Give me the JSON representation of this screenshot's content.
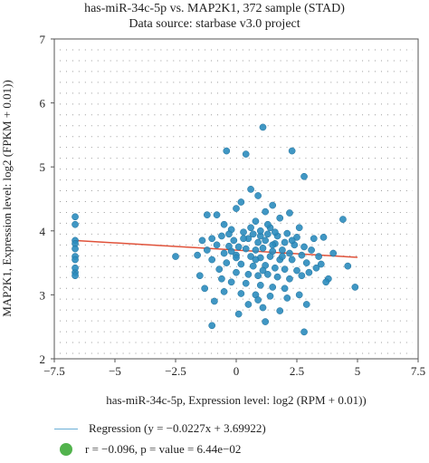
{
  "chart_data": {
    "type": "scatter",
    "title": "has-miR-34c-5p vs. MAP2K1, 372 sample (STAD)",
    "subtitle": "Data source: starbase v3.0 project",
    "xlabel": "has-miR-34c-5p, Expression level: log2 (RPM + 0.01))",
    "ylabel": "MAP2K1, Expression level: log2 (FPKM + 0.01))",
    "xlim": [
      -7.5,
      7.5
    ],
    "ylim": [
      2,
      7
    ],
    "xticks": [
      "−7.5",
      "−5",
      "−2.5",
      "0",
      "2.5",
      "5",
      "7.5"
    ],
    "yticks": [
      "2",
      "3",
      "4",
      "5",
      "6",
      "7"
    ],
    "grid": "dotted",
    "point_color": "#2b8cbe",
    "regression": {
      "slope": -0.0227,
      "intercept": 3.69922,
      "x_range": [
        -6.6,
        5
      ],
      "color": "#e0523a"
    },
    "legend": {
      "regression_label": "Regression (y = −0.0227x + 3.69922)",
      "stat_label": "r = −0.096, p = value = 6.44e−02",
      "line_color": "#6aaed6",
      "dot_color": "#52b34d",
      "placement": "bottom"
    },
    "points": [
      [
        -6.64,
        4.22
      ],
      [
        -6.64,
        4.1
      ],
      [
        -6.64,
        3.85
      ],
      [
        -6.64,
        3.8
      ],
      [
        -6.64,
        3.72
      ],
      [
        -6.64,
        3.6
      ],
      [
        -6.64,
        3.55
      ],
      [
        -6.64,
        3.35
      ],
      [
        -6.64,
        3.3
      ],
      [
        -6.64,
        3.42
      ],
      [
        1.1,
        5.62
      ],
      [
        -0.4,
        5.25
      ],
      [
        0.4,
        5.2
      ],
      [
        2.3,
        5.25
      ],
      [
        2.8,
        4.85
      ],
      [
        0.6,
        4.65
      ],
      [
        0.9,
        4.55
      ],
      [
        0.2,
        4.45
      ],
      [
        1.5,
        4.4
      ],
      [
        1.2,
        4.3
      ],
      [
        -1.2,
        4.25
      ],
      [
        -0.8,
        4.25
      ],
      [
        4.4,
        4.18
      ],
      [
        2.2,
        4.28
      ],
      [
        0.0,
        4.35
      ],
      [
        1.8,
        4.2
      ],
      [
        -0.5,
        4.1
      ],
      [
        2.6,
        4.05
      ],
      [
        0.8,
        4.15
      ],
      [
        1.4,
        4.05
      ],
      [
        -0.2,
        4.02
      ],
      [
        0.3,
        3.98
      ],
      [
        0.7,
        3.95
      ],
      [
        1.0,
        3.92
      ],
      [
        1.3,
        3.95
      ],
      [
        1.7,
        3.92
      ],
      [
        2.1,
        3.96
      ],
      [
        2.5,
        3.9
      ],
      [
        -0.6,
        3.92
      ],
      [
        -1.0,
        3.88
      ],
      [
        -1.4,
        3.85
      ],
      [
        3.2,
        3.88
      ],
      [
        3.6,
        3.9
      ],
      [
        -0.1,
        3.85
      ],
      [
        0.5,
        3.88
      ],
      [
        0.9,
        3.82
      ],
      [
        1.2,
        3.85
      ],
      [
        1.6,
        3.8
      ],
      [
        2.0,
        3.82
      ],
      [
        2.4,
        3.78
      ],
      [
        2.8,
        3.75
      ],
      [
        3.1,
        3.7
      ],
      [
        -0.8,
        3.78
      ],
      [
        -0.3,
        3.76
      ],
      [
        0.1,
        3.75
      ],
      [
        0.4,
        3.72
      ],
      [
        0.8,
        3.7
      ],
      [
        1.1,
        3.73
      ],
      [
        1.5,
        3.68
      ],
      [
        1.9,
        3.7
      ],
      [
        2.2,
        3.65
      ],
      [
        2.7,
        3.62
      ],
      [
        3.4,
        3.6
      ],
      [
        4.0,
        3.65
      ],
      [
        -1.2,
        3.7
      ],
      [
        -0.5,
        3.65
      ],
      [
        0.0,
        3.62
      ],
      [
        0.6,
        3.6
      ],
      [
        1.0,
        3.58
      ],
      [
        1.4,
        3.6
      ],
      [
        1.8,
        3.55
      ],
      [
        2.3,
        3.55
      ],
      [
        2.9,
        3.5
      ],
      [
        3.5,
        3.48
      ],
      [
        -1.0,
        3.55
      ],
      [
        -0.4,
        3.5
      ],
      [
        0.2,
        3.48
      ],
      [
        0.7,
        3.45
      ],
      [
        1.2,
        3.46
      ],
      [
        1.6,
        3.42
      ],
      [
        2.0,
        3.4
      ],
      [
        2.5,
        3.38
      ],
      [
        3.0,
        3.35
      ],
      [
        -0.7,
        3.4
      ],
      [
        0.0,
        3.35
      ],
      [
        0.5,
        3.32
      ],
      [
        0.9,
        3.3
      ],
      [
        1.3,
        3.32
      ],
      [
        1.7,
        3.28
      ],
      [
        2.2,
        3.25
      ],
      [
        -0.2,
        3.2
      ],
      [
        0.4,
        3.18
      ],
      [
        1.0,
        3.15
      ],
      [
        1.5,
        3.12
      ],
      [
        2.0,
        3.1
      ],
      [
        -1.3,
        3.1
      ],
      [
        -0.5,
        3.05
      ],
      [
        0.2,
        3.02
      ],
      [
        0.8,
        3.0
      ],
      [
        1.4,
        2.98
      ],
      [
        2.6,
        3.0
      ],
      [
        -0.9,
        2.9
      ],
      [
        0.5,
        2.85
      ],
      [
        1.1,
        2.8
      ],
      [
        1.8,
        2.75
      ],
      [
        -1.0,
        2.52
      ],
      [
        1.2,
        2.58
      ],
      [
        2.8,
        2.42
      ],
      [
        4.9,
        3.12
      ],
      [
        -2.5,
        3.6
      ],
      [
        -1.6,
        3.62
      ],
      [
        3.8,
        3.25
      ],
      [
        4.6,
        3.45
      ],
      [
        2.9,
        2.85
      ],
      [
        0.1,
        2.7
      ],
      [
        1.0,
        4.0
      ],
      [
        1.3,
        4.1
      ],
      [
        0.6,
        4.05
      ],
      [
        -0.3,
        3.95
      ],
      [
        2.3,
        3.85
      ],
      [
        1.6,
        3.98
      ],
      [
        0.3,
        3.88
      ],
      [
        1.9,
        3.6
      ],
      [
        0.8,
        3.55
      ],
      [
        -0.2,
        3.68
      ],
      [
        2.7,
        3.3
      ],
      [
        3.3,
        3.42
      ],
      [
        1.1,
        3.38
      ],
      [
        0.0,
        3.58
      ],
      [
        1.5,
        3.78
      ],
      [
        -1.5,
        3.3
      ],
      [
        3.7,
        3.2
      ],
      [
        2.1,
        2.95
      ],
      [
        0.9,
        2.92
      ],
      [
        -0.6,
        3.25
      ]
    ]
  }
}
